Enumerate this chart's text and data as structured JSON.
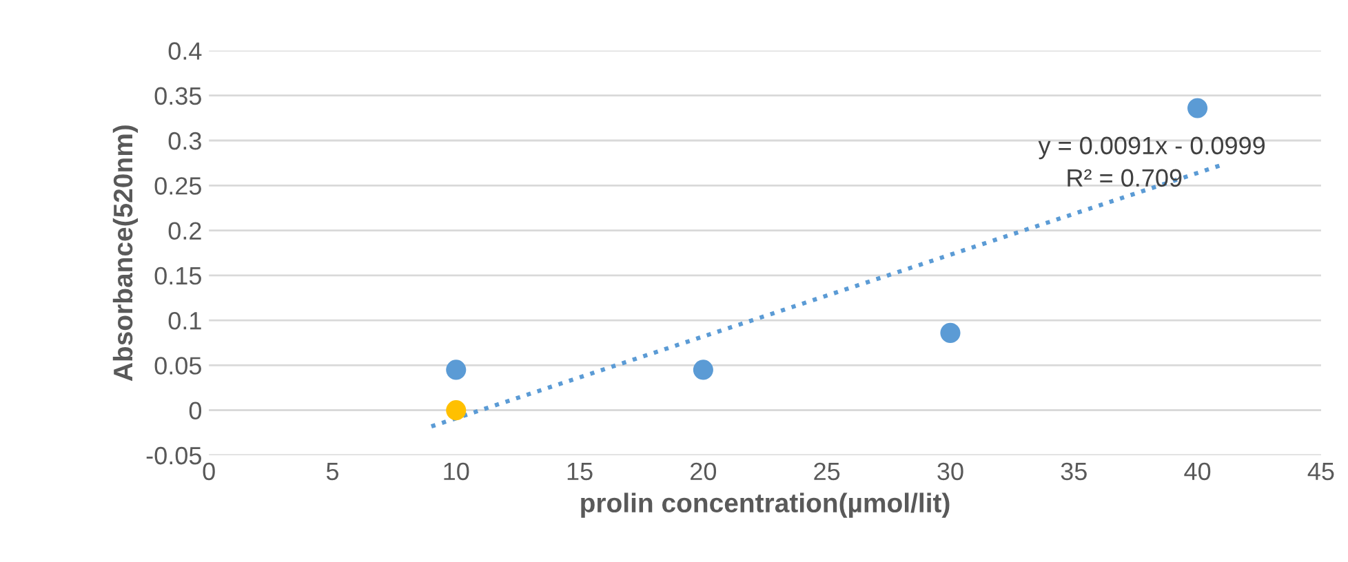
{
  "chart_data": {
    "type": "scatter",
    "xlabel": "prolin concentration(µmol/lit)",
    "ylabel": "Absorbance(520nm)",
    "series": [
      {
        "color": "#5b9bd5",
        "x": [
          10,
          20,
          30,
          40
        ],
        "values": [
          0.045,
          0.045,
          0.086,
          0.336
        ]
      },
      {
        "color": "#ffc000",
        "x": [
          10
        ],
        "values": [
          0.0
        ]
      },
      {
        "type": "line",
        "color": "#5b9bd5",
        "x": [
          9,
          41
        ],
        "values": [
          -0.018,
          0.273
        ],
        "line_style": "dotted",
        "marker": "none"
      }
    ],
    "annotations": [
      "y = 0.0091x - 0.0999",
      "R² = 0.709"
    ],
    "xlim": [
      0,
      45
    ],
    "xticks": [
      0,
      5,
      10,
      15,
      20,
      25,
      30,
      35,
      40,
      45
    ],
    "ylim": [
      -0.05,
      0.4
    ],
    "yticks": [
      -0.05,
      0,
      0.05,
      0.1,
      0.15,
      0.2,
      0.25,
      0.3,
      0.35,
      0.4
    ],
    "grid": "y",
    "marker": "circle",
    "legend": false
  }
}
